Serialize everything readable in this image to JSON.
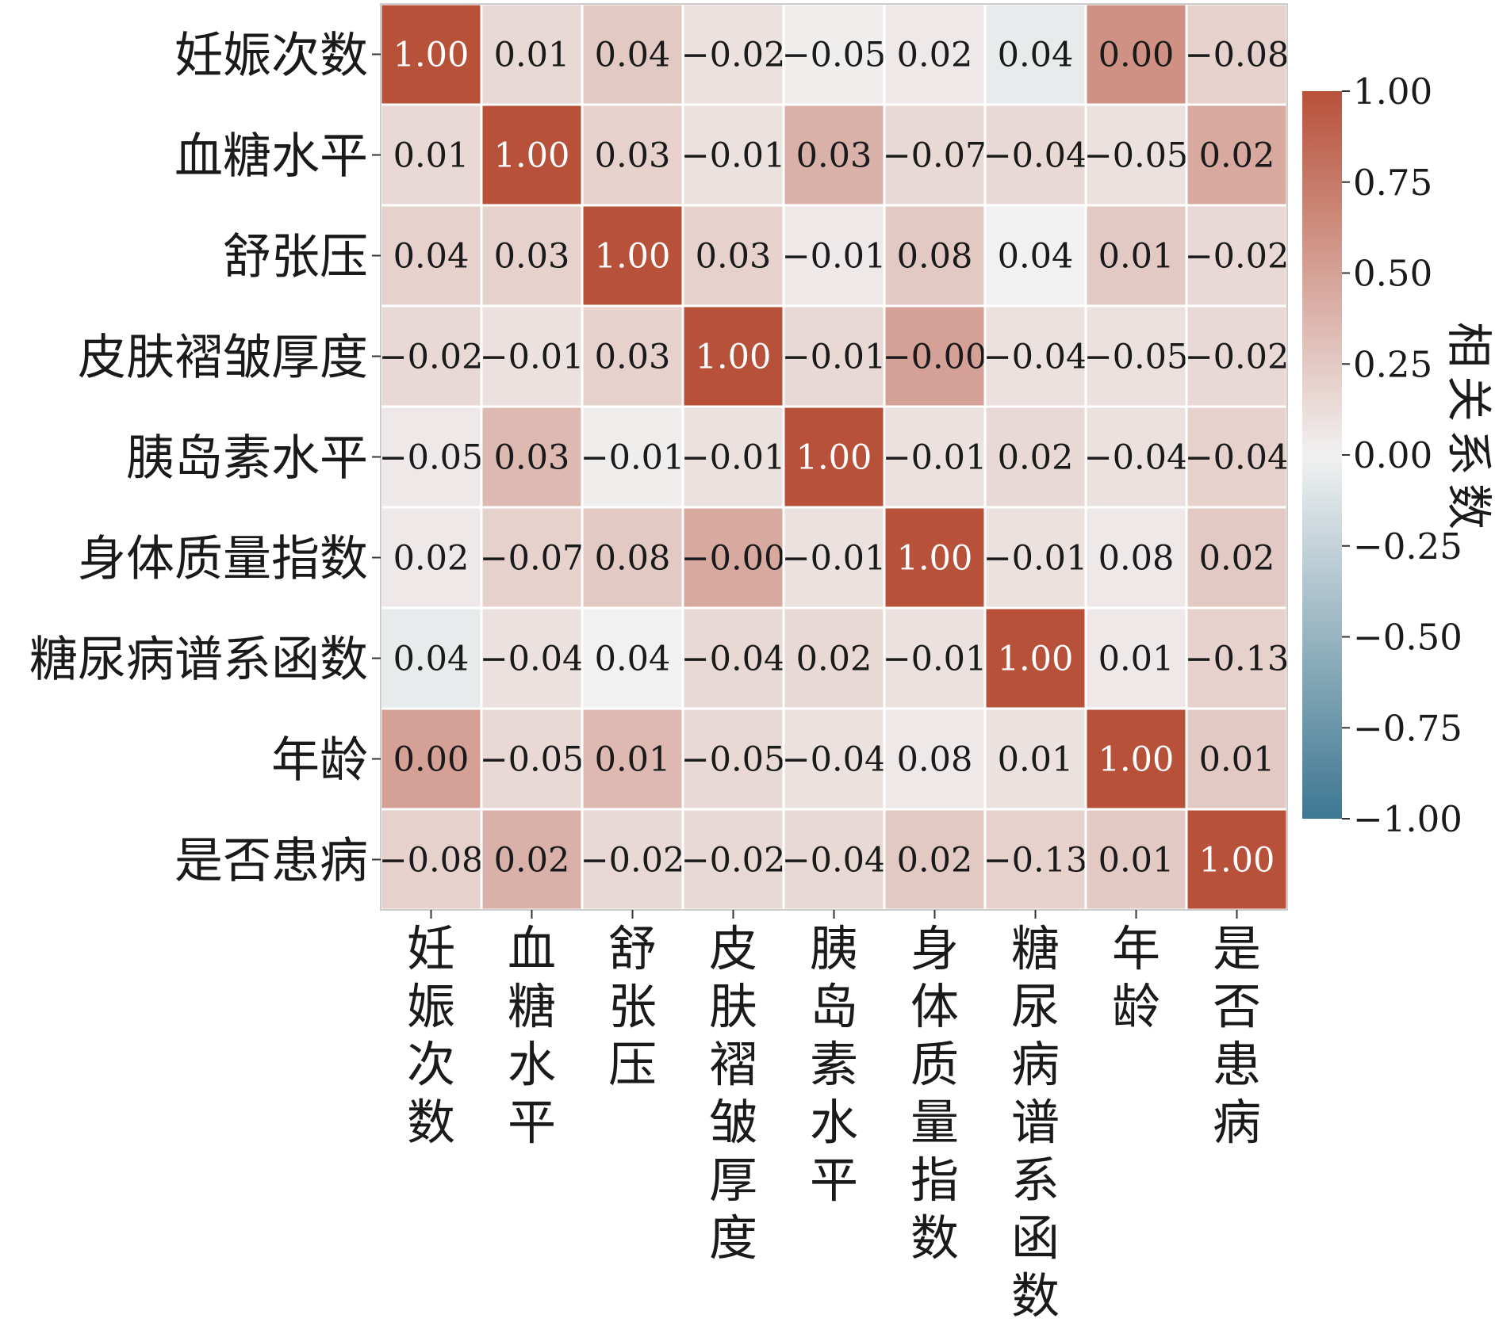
{
  "chart_data": {
    "type": "heatmap",
    "variables": [
      "妊娠次数",
      "血糖水平",
      "舒张压",
      "皮肤褶皱厚度",
      "胰岛素水平",
      "身体质量指数",
      "糖尿病谱系函数",
      "年龄",
      "是否患病"
    ],
    "values": [
      [
        1.0,
        0.01,
        0.04,
        -0.02,
        -0.05,
        0.02,
        0.04,
        0.0,
        -0.08
      ],
      [
        0.01,
        1.0,
        0.03,
        -0.01,
        0.03,
        -0.07,
        -0.04,
        -0.05,
        0.02
      ],
      [
        0.04,
        0.03,
        1.0,
        0.03,
        -0.01,
        0.08,
        0.04,
        0.01,
        -0.02
      ],
      [
        -0.02,
        -0.01,
        0.03,
        1.0,
        -0.01,
        -0.0,
        -0.04,
        -0.05,
        -0.02
      ],
      [
        -0.05,
        0.03,
        -0.01,
        -0.01,
        1.0,
        -0.01,
        0.02,
        -0.04,
        -0.04
      ],
      [
        0.02,
        -0.07,
        0.08,
        -0.0,
        -0.01,
        1.0,
        -0.01,
        0.08,
        0.02
      ],
      [
        0.04,
        -0.04,
        0.04,
        -0.04,
        0.02,
        -0.01,
        1.0,
        0.01,
        -0.13
      ],
      [
        0.0,
        -0.05,
        0.01,
        -0.05,
        -0.04,
        0.08,
        0.01,
        1.0,
        0.01
      ],
      [
        -0.08,
        0.02,
        -0.02,
        -0.02,
        -0.04,
        0.02,
        -0.13,
        0.01,
        1.0
      ]
    ],
    "cell_labels": [
      [
        "1.00",
        "0.01",
        "0.04",
        "−0.02",
        "−0.05",
        "0.02",
        "0.04",
        "0.00",
        "−0.08"
      ],
      [
        "0.01",
        "1.00",
        "0.03",
        "−0.01",
        "0.03",
        "−0.07",
        "−0.04",
        "−0.05",
        "0.02"
      ],
      [
        "0.04",
        "0.03",
        "1.00",
        "0.03",
        "−0.01",
        "0.08",
        "0.04",
        "0.01",
        "−0.02"
      ],
      [
        "−0.02",
        "−0.01",
        "0.03",
        "1.00",
        "−0.01",
        "−0.00",
        "−0.04",
        "−0.05",
        "−0.02"
      ],
      [
        "−0.05",
        "0.03",
        "−0.01",
        "−0.01",
        "1.00",
        "−0.01",
        "0.02",
        "−0.04",
        "−0.04"
      ],
      [
        "0.02",
        "−0.07",
        "0.08",
        "−0.00",
        "−0.01",
        "1.00",
        "−0.01",
        "0.08",
        "0.02"
      ],
      [
        "0.04",
        "−0.04",
        "0.04",
        "−0.04",
        "0.02",
        "−0.01",
        "1.00",
        "0.01",
        "−0.13"
      ],
      [
        "0.00",
        "−0.05",
        "0.01",
        "−0.05",
        "−0.04",
        "0.08",
        "0.01",
        "1.00",
        "0.01"
      ],
      [
        "−0.08",
        "0.02",
        "−0.02",
        "−0.02",
        "−0.04",
        "0.02",
        "−0.13",
        "0.01",
        "1.00"
      ]
    ],
    "displayed_intensity": [
      [
        1.0,
        0.15,
        0.25,
        0.1,
        0.02,
        0.05,
        -0.05,
        0.6,
        0.2
      ],
      [
        0.15,
        1.0,
        0.2,
        0.1,
        0.4,
        0.15,
        0.15,
        0.1,
        0.45
      ],
      [
        0.2,
        0.2,
        1.0,
        0.2,
        0.05,
        0.25,
        0.0,
        0.25,
        0.15
      ],
      [
        0.15,
        0.1,
        0.2,
        1.0,
        0.15,
        0.5,
        0.1,
        0.1,
        0.15
      ],
      [
        0.05,
        0.35,
        0.02,
        0.1,
        1.0,
        0.1,
        0.15,
        0.1,
        0.2
      ],
      [
        0.05,
        0.2,
        0.25,
        0.45,
        0.1,
        1.0,
        0.1,
        0.05,
        0.25
      ],
      [
        -0.05,
        0.1,
        0.0,
        0.15,
        0.15,
        0.1,
        1.0,
        0.05,
        0.2
      ],
      [
        0.5,
        0.15,
        0.35,
        0.15,
        0.1,
        0.05,
        0.1,
        1.0,
        0.25
      ],
      [
        0.2,
        0.4,
        0.15,
        0.15,
        0.15,
        0.25,
        0.2,
        0.25,
        1.0
      ]
    ],
    "xlabels": [
      "妊娠次数",
      "血糖水平",
      "舒张压",
      "皮肤褶皱厚度",
      "胰岛素水平",
      "身体质量指数",
      "糖尿病谱系函数",
      "年龄",
      "是否患病"
    ],
    "ylabels": [
      "妊娠次数",
      "血糖水平",
      "舒张压",
      "皮肤褶皱厚度",
      "胰岛素水平",
      "身体质量指数",
      "糖尿病谱系函数",
      "年龄",
      "是否患病"
    ],
    "xlabel": "",
    "ylabel": "",
    "legend": {
      "title": "相关系数",
      "range": [
        -1,
        1
      ],
      "ticks": [
        1.0,
        0.75,
        0.5,
        0.25,
        0.0,
        -0.25,
        -0.5,
        -0.75,
        -1.0
      ],
      "tick_labels": [
        "1.00",
        "0.75",
        "0.50",
        "0.25",
        "0.00",
        "−0.25",
        "−0.50",
        "−0.75",
        "−1.00"
      ],
      "placement": "right"
    },
    "colors": {
      "high": "#b8513a",
      "mid": "#f1f1f1",
      "low": "#3d7791",
      "cell_border": "#ffffff",
      "panel_border": "#cccccc",
      "text_dark": "#1a1a1a",
      "text_light": "#ffffff"
    }
  }
}
